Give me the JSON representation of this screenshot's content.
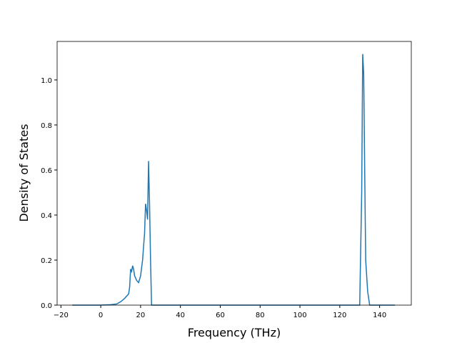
{
  "chart_data": {
    "type": "line",
    "xlabel": "Frequency (THz)",
    "ylabel": "Density of States",
    "series": [
      {
        "color": "#1f77b4",
        "x": [
          -14.3,
          0,
          5,
          8,
          10,
          12,
          14,
          14.5,
          15,
          15.5,
          16,
          16.5,
          17,
          18,
          19,
          20,
          21,
          22,
          22.5,
          23,
          23.5,
          24,
          24.5,
          25,
          25.5,
          130,
          131,
          131.5,
          132,
          132.5,
          133,
          134,
          135,
          147.7
        ],
        "values": [
          0,
          0,
          0.002,
          0.005,
          0.015,
          0.03,
          0.05,
          0.08,
          0.16,
          0.15,
          0.175,
          0.16,
          0.13,
          0.11,
          0.1,
          0.13,
          0.2,
          0.32,
          0.45,
          0.42,
          0.38,
          0.64,
          0.45,
          0.2,
          0,
          0,
          0.5,
          1.115,
          1.03,
          0.6,
          0.2,
          0.06,
          0,
          0
        ]
      }
    ],
    "xlim": [
      -21.9,
      155.9
    ],
    "xticks": [
      {
        "value": -20,
        "label": "−20"
      },
      0,
      20,
      40,
      60,
      80,
      100,
      120,
      140
    ],
    "ylim": [
      0,
      1.171
    ],
    "yticks": [
      {
        "value": 0,
        "label": "0.0"
      },
      0.2,
      0.4,
      0.6,
      0.8,
      {
        "value": 1,
        "label": "1.0"
      }
    ]
  }
}
